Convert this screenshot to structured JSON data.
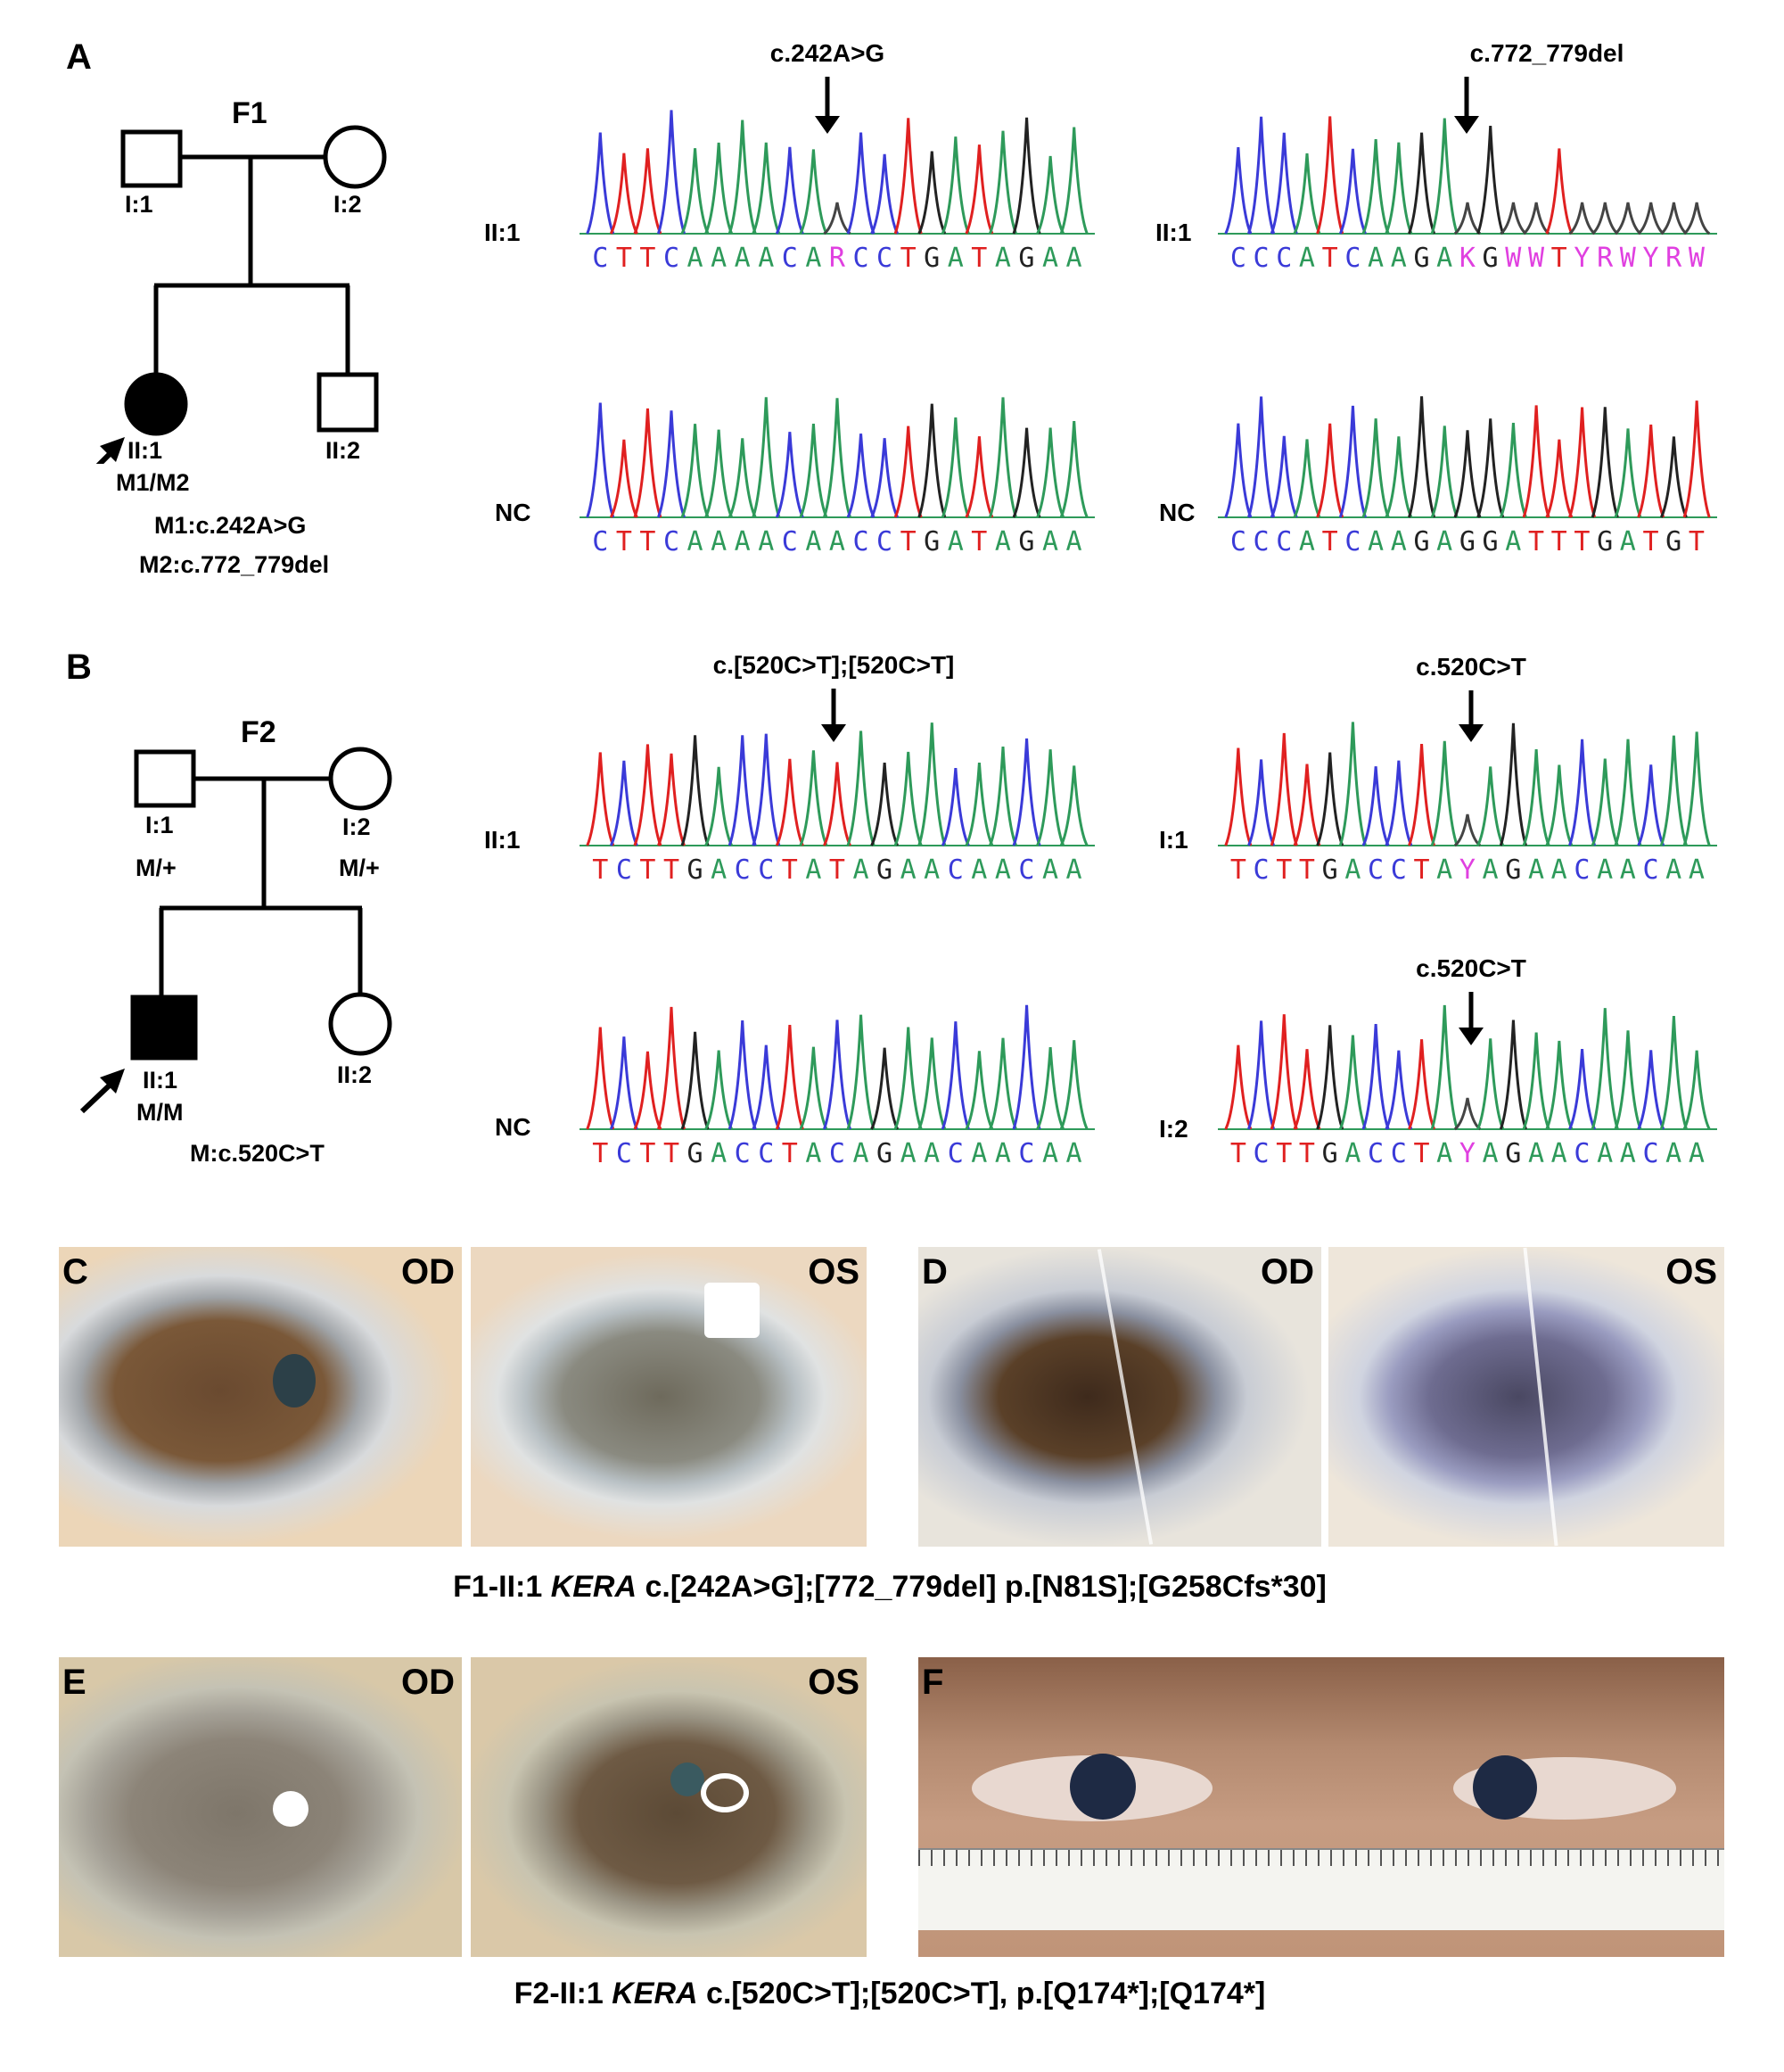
{
  "panels": {
    "A": {
      "letter": "A",
      "pedigree": {
        "family": "F1",
        "members": {
          "I1": "I:1",
          "I2": "I:2",
          "II1": "II:1",
          "II2": "II:2"
        },
        "genotype": "M1/M2",
        "notes": [
          "M1:c.242A>G",
          "M2:c.772_779del"
        ]
      },
      "chromatograms": [
        {
          "row": "II:1",
          "mutation": "c.242A>G",
          "sequence": "CTTCAAAACARCCTGATAGAA"
        },
        {
          "row": "II:1",
          "mutation": "c.772_779del",
          "sequence": "CCCATCAAGAKGWWTYRWYRW"
        },
        {
          "row": "NC",
          "mutation": "",
          "sequence": "CTTCAAAACAACCTGATAGAA"
        },
        {
          "row": "NC",
          "mutation": "",
          "sequence": "CCCATCAAGAGGATTTGATGT"
        }
      ]
    },
    "B": {
      "letter": "B",
      "pedigree": {
        "family": "F2",
        "members": {
          "I1": "I:1",
          "I2": "I:2",
          "II1": "II:1",
          "II2": "II:2"
        },
        "genotypes": {
          "I1": "M/+",
          "I2": "M/+",
          "II1": "M/M"
        },
        "note": "M:c.520C>T"
      },
      "chromatograms": [
        {
          "row": "II:1",
          "mutation": "c.[520C>T];[520C>T]",
          "sequence": "TCTTGACCTATAGAACAACAA"
        },
        {
          "row": "I:1",
          "mutation": "c.520C>T",
          "sequence": "TCTTGACCTAYAGAACAACAA"
        },
        {
          "row": "NC",
          "mutation": "",
          "sequence": "TCTTGACCTACAGAACAACAA"
        },
        {
          "row": "I:2",
          "mutation": "c.520C>T",
          "sequence": "TCTTGACCTAYAGAACAACAA"
        }
      ]
    },
    "photos": {
      "C": {
        "letter": "C",
        "od": "OD",
        "os": "OS"
      },
      "D": {
        "letter": "D",
        "od": "OD",
        "os": "OS"
      },
      "E": {
        "letter": "E",
        "od": "OD",
        "os": "OS"
      },
      "F": {
        "letter": "F"
      }
    },
    "caption1": {
      "prefix": "F1-II:1",
      "gene": "KERA",
      "rest": "c.[242A>G];[772_779del] p.[N81S];[G258Cfs*30]"
    },
    "caption2": {
      "prefix": "F2-II:1",
      "gene": "KERA",
      "rest": "c.[520C>T];[520C>T], p.[Q174*];[Q174*]"
    }
  },
  "colors": {
    "A": "#2e9a5a",
    "C": "#3a3ad8",
    "G": "#222222",
    "T": "#e02020",
    "ambiguous": "#e040e0"
  }
}
